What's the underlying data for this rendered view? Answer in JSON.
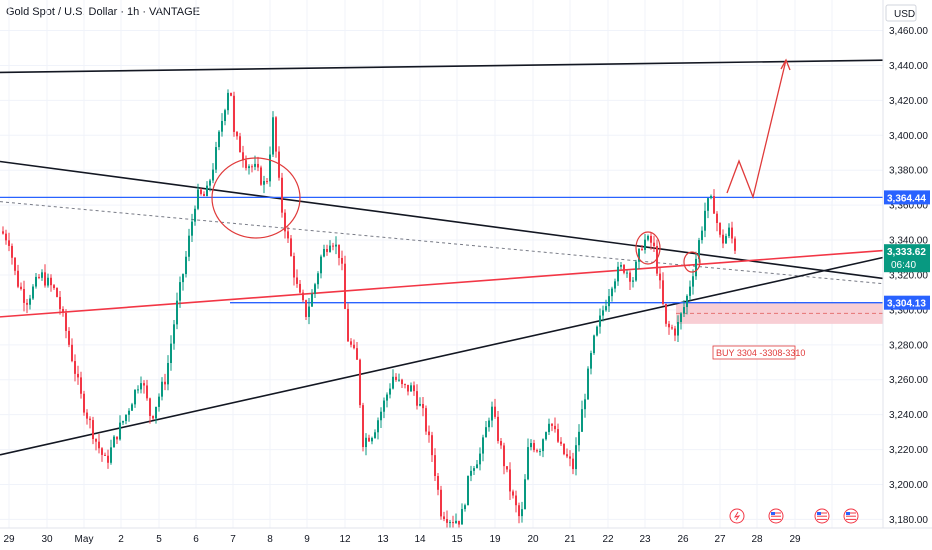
{
  "header": {
    "title": "Gold Spot / U.S. Dollar · 1h · VANTAGE",
    "currency": "USD"
  },
  "chart_data": {
    "type": "candlestick",
    "y_axis": {
      "range": [
        3172,
        3468
      ],
      "ticks": [
        3460,
        3440,
        3420,
        3400,
        3380,
        3360,
        3340,
        3320,
        3300,
        3280,
        3260,
        3240,
        3220,
        3200,
        3180
      ],
      "tick_labels": [
        "3,460.00",
        "3,440.00",
        "3,420.00",
        "3,400.00",
        "3,380.00",
        "3,360.00",
        "3,340.00",
        "3,320.00",
        "3,300.00",
        "3,280.00",
        "3,260.00",
        "3,240.00",
        "3,220.00",
        "3,200.00",
        "3,180.00"
      ]
    },
    "x_axis": {
      "labels": [
        "29",
        "30",
        "May",
        "2",
        "5",
        "6",
        "7",
        "8",
        "9",
        "12",
        "13",
        "14",
        "15",
        "19",
        "20",
        "21",
        "22",
        "23",
        "26",
        "27",
        "28",
        "29"
      ]
    },
    "price_badges": [
      {
        "label": "3,364.44",
        "value": 3364.44,
        "color": "#2962ff"
      },
      {
        "label": "3,333.62",
        "sub": "06:40",
        "value": 3333.62,
        "color": "#089981"
      },
      {
        "label": "3,304.13",
        "value": 3304.13,
        "color": "#2962ff"
      }
    ],
    "annotations": [
      {
        "text": "BUY 3304 -3308-3310"
      }
    ],
    "colors": {
      "up": "#089981",
      "down": "#f23645",
      "h_line": "#2962ff",
      "trend": "#131722",
      "red_trend": "#f23645",
      "zone": "#f7c6cc"
    },
    "events": [
      "lightning-icon",
      "us-flag-icon",
      "us-flag-icon",
      "us-flag-icon"
    ]
  }
}
